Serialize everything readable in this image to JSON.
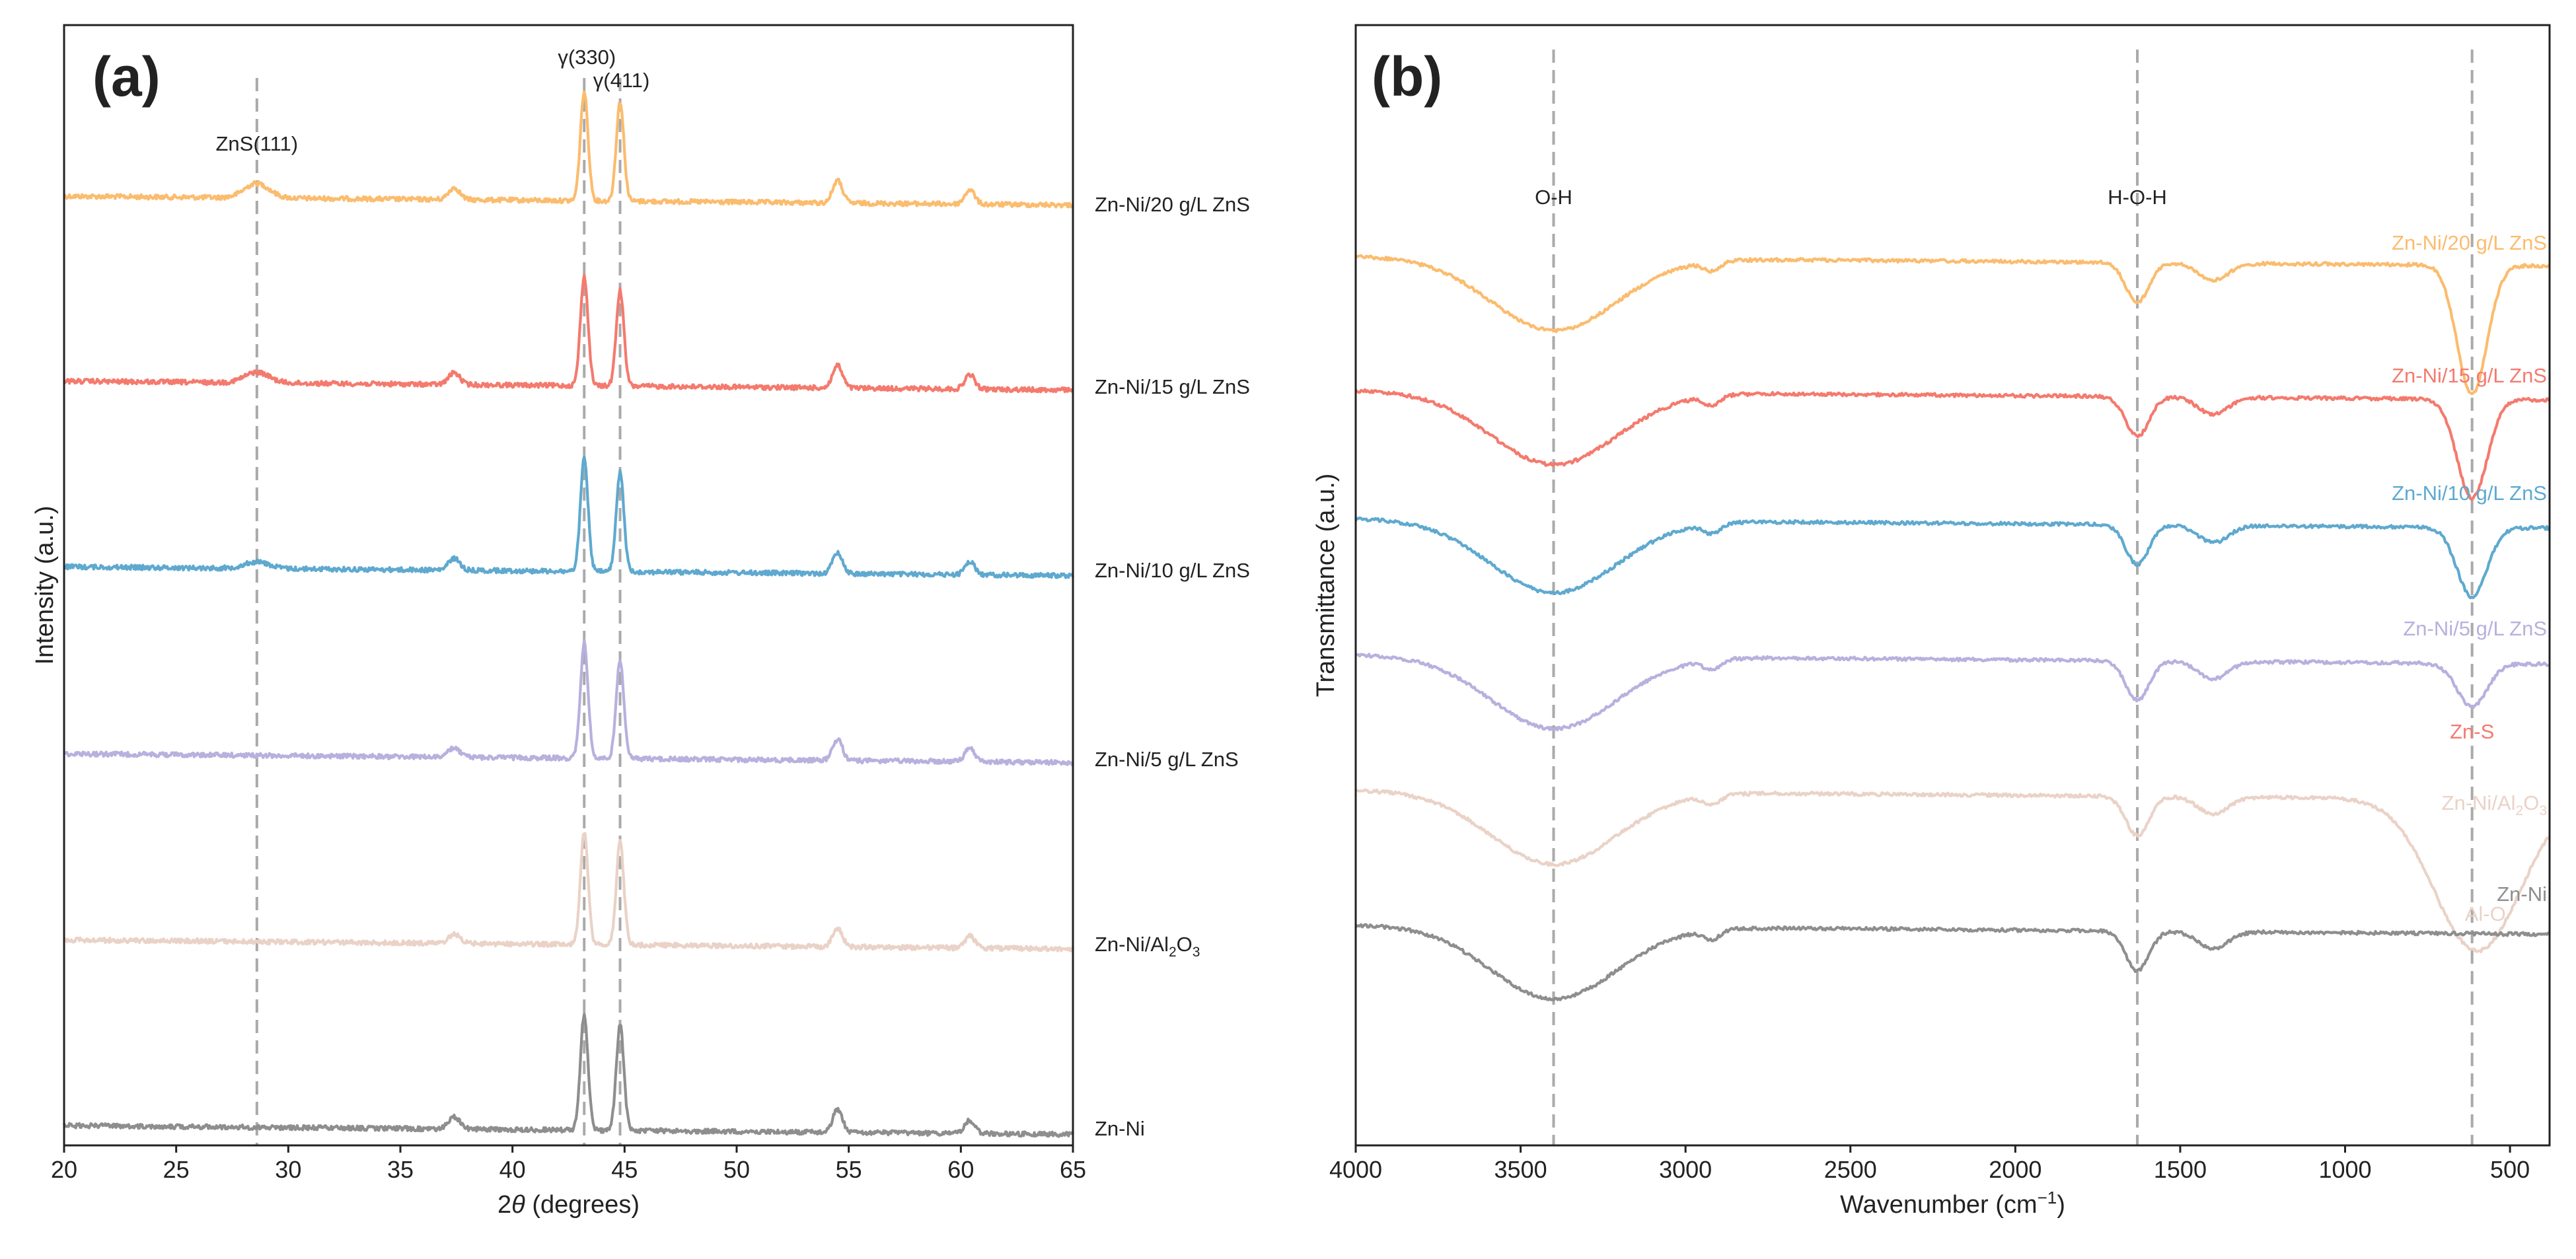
{
  "chart_data": [
    {
      "panel_label": "(a)",
      "type": "line",
      "xlabel_prefix": "2",
      "xlabel_symbol": "θ",
      "xlabel_suffix": " (degrees)",
      "ylabel": "Intensity (a.u.)",
      "xlim": [
        20,
        65
      ],
      "xticks": [
        20,
        25,
        30,
        35,
        40,
        45,
        50,
        55,
        60,
        65
      ],
      "reference_lines": [
        28.6,
        43.2,
        44.8
      ],
      "annotations": [
        {
          "text": "ZnS(111)",
          "x": 28.6
        },
        {
          "text": "γ(330)",
          "x": 43.2
        },
        {
          "text": "γ(411)",
          "x": 44.8
        }
      ],
      "peaks": [
        {
          "x": 28.6,
          "width": 0.55,
          "heights": [
            22,
            16,
            10,
            0,
            0,
            0
          ]
        },
        {
          "x": 37.4,
          "width": 0.25,
          "heights": [
            18,
            18,
            18,
            14,
            14,
            18
          ]
        },
        {
          "x": 43.2,
          "width": 0.17,
          "heights": [
            165,
            165,
            170,
            175,
            170,
            175
          ]
        },
        {
          "x": 44.8,
          "width": 0.17,
          "heights": [
            150,
            145,
            150,
            150,
            155,
            160
          ]
        },
        {
          "x": 54.5,
          "width": 0.22,
          "heights": [
            34,
            34,
            32,
            32,
            28,
            34
          ]
        },
        {
          "x": 60.4,
          "width": 0.22,
          "heights": [
            22,
            22,
            20,
            20,
            18,
            20
          ]
        }
      ],
      "series": [
        {
          "name": "Zn-Ni/20 g/L ZnS",
          "color": "#fbbc6e"
        },
        {
          "name": "Zn-Ni/15 g/L ZnS",
          "color": "#f47a6e"
        },
        {
          "name": "Zn-Ni/10 g/L ZnS",
          "color": "#5fa9cf"
        },
        {
          "name": "Zn-Ni/5 g/L ZnS",
          "color": "#b7b1de"
        },
        {
          "name_main": "Zn-Ni/Al",
          "name_sub1": "2",
          "name_mid": "O",
          "name_sub2": "3",
          "color": "#ead2c7"
        },
        {
          "name": "Zn-Ni",
          "color": "#8e8e8e"
        }
      ]
    },
    {
      "panel_label": "(b)",
      "type": "line",
      "xlabel_main": "Wavenumber (cm",
      "xlabel_sup": "−1",
      "xlabel_end": ")",
      "ylabel": "Transmittance (a.u.)",
      "xlim": [
        4000,
        380
      ],
      "xticks": [
        4000,
        3500,
        3000,
        2500,
        2000,
        1500,
        1000,
        500
      ],
      "reference_lines": [
        3400,
        1630,
        615
      ],
      "annotations": [
        {
          "text": "O-H",
          "x": 3400
        },
        {
          "text": "H-O-H",
          "x": 1630
        },
        {
          "text": "Zn-S",
          "x": 615,
          "color": "#f47a6e"
        },
        {
          "text": "Al-O",
          "x": 615,
          "color": "#ead2c7"
        }
      ],
      "bands": [
        {
          "x": 3400,
          "width": 190,
          "depths": [
            110,
            110,
            110,
            110,
            110,
            110
          ]
        },
        {
          "x": 2920,
          "width": 25,
          "depths": [
            14,
            14,
            14,
            14,
            14,
            14
          ]
        },
        {
          "x": 1630,
          "width": 35,
          "depths": [
            60,
            60,
            60,
            60,
            60,
            60
          ]
        },
        {
          "x": 1400,
          "width": 45,
          "depths": [
            26,
            26,
            26,
            26,
            26,
            26
          ]
        },
        {
          "x": 615,
          "width": 45,
          "depths": [
            195,
            150,
            105,
            65,
            0,
            0
          ]
        },
        {
          "x": 600,
          "width": 130,
          "depths": [
            0,
            0,
            0,
            0,
            230,
            0
          ]
        }
      ],
      "series": [
        {
          "name": "Zn-Ni/20 g/L ZnS",
          "color": "#fbbc6e"
        },
        {
          "name": "Zn-Ni/15 g/L ZnS",
          "color": "#f47a6e"
        },
        {
          "name": "Zn-Ni/10 g/L ZnS",
          "color": "#5fa9cf"
        },
        {
          "name": "Zn-Ni/5 g/L ZnS",
          "color": "#b7b1de"
        },
        {
          "name_main": "Zn-Ni/Al",
          "name_sub1": "2",
          "name_mid": "O",
          "name_sub2": "3",
          "color": "#ead2c7"
        },
        {
          "name": "Zn-Ni",
          "color": "#8e8e8e"
        }
      ]
    }
  ]
}
